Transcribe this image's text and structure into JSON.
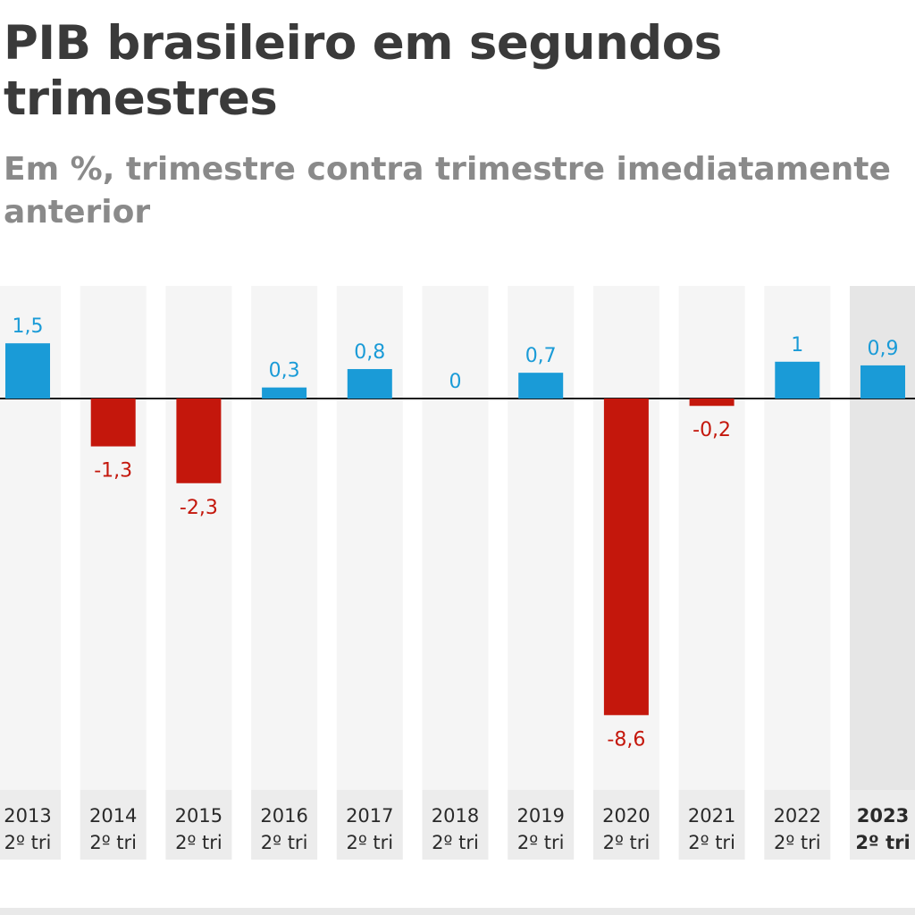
{
  "title": "PIB brasileiro em segundos trimestres",
  "subtitle": "Em %, trimestre contra trimestre imediatamente anterior",
  "colors": {
    "positive": "#1a9bd7",
    "negative": "#c4170c",
    "column_bg": "#f5f5f5",
    "highlight_bg": "#e6e6e6",
    "label_bg": "#ececec",
    "axis": "#1a1a1a",
    "tick_text": "#2a2a2a"
  },
  "chart_data": {
    "type": "bar",
    "categories": [
      "2013",
      "2014",
      "2015",
      "2016",
      "2017",
      "2018",
      "2019",
      "2020",
      "2021",
      "2022",
      "2023"
    ],
    "category_sublabel": "2º tri",
    "values": [
      1.5,
      -1.3,
      -2.3,
      0.3,
      0.8,
      0,
      0.7,
      -8.6,
      -0.2,
      1,
      0.9
    ],
    "value_labels": [
      "1,5",
      "-1,3",
      "-2,3",
      "0,3",
      "0,8",
      "0",
      "0,7",
      "-8,6",
      "-0,2",
      "1",
      "0,9"
    ],
    "highlighted_category": "2023",
    "title": "PIB brasileiro em segundos trimestres",
    "subtitle": "Em %, trimestre contra trimestre imediatamente anterior",
    "xlabel": "",
    "ylabel": "",
    "grid": false,
    "legend": "none"
  }
}
